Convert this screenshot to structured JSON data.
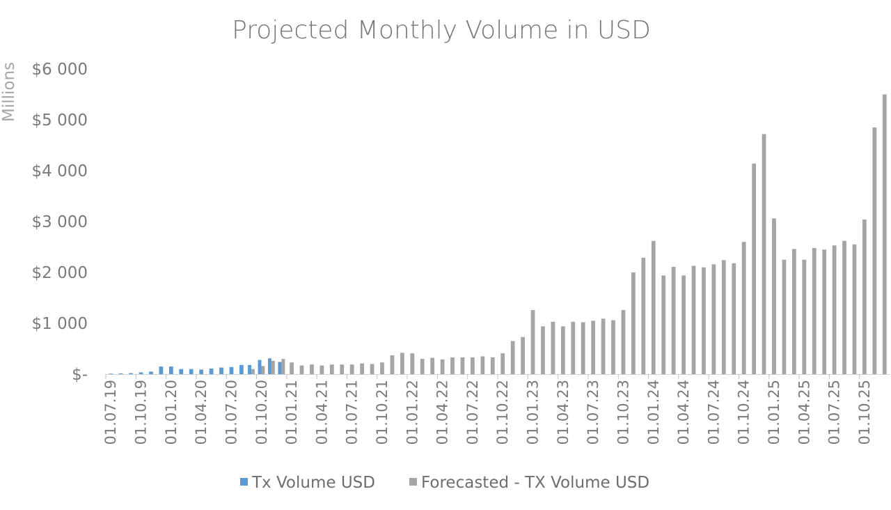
{
  "chart_data": {
    "type": "bar",
    "title": "Projected Monthly Volume in USD",
    "ylabel": "Millions",
    "ylim": [
      0,
      6000
    ],
    "yticks": [
      0,
      1000,
      2000,
      3000,
      4000,
      5000,
      6000
    ],
    "ytick_labels": [
      "$-",
      "$1 000",
      "$2 000",
      "$3 000",
      "$4 000",
      "$5 000",
      "$6 000"
    ],
    "grid": false,
    "legend_position": "bottom",
    "categories": [
      "01.07.19",
      "01.08.19",
      "01.09.19",
      "01.10.19",
      "01.11.19",
      "01.12.19",
      "01.01.20",
      "01.02.20",
      "01.03.20",
      "01.04.20",
      "01.05.20",
      "01.06.20",
      "01.07.20",
      "01.08.20",
      "01.09.20",
      "01.10.20",
      "01.11.20",
      "01.12.20",
      "01.01.21",
      "01.02.21",
      "01.03.21",
      "01.04.21",
      "01.05.21",
      "01.06.21",
      "01.07.21",
      "01.08.21",
      "01.09.21",
      "01.10.21",
      "01.11.21",
      "01.12.21",
      "01.01.22",
      "01.02.22",
      "01.03.22",
      "01.04.22",
      "01.05.22",
      "01.06.22",
      "01.07.22",
      "01.08.22",
      "01.09.22",
      "01.10.22",
      "01.11.22",
      "01.12.22",
      "01.01.23",
      "01.02.23",
      "01.03.23",
      "01.04.23",
      "01.05.23",
      "01.06.23",
      "01.07.23",
      "01.08.23",
      "01.09.23",
      "01.10.23",
      "01.11.23",
      "01.12.23",
      "01.01.24",
      "01.02.24",
      "01.03.24",
      "01.04.24",
      "01.05.24",
      "01.06.24",
      "01.07.24",
      "01.08.24",
      "01.09.24",
      "01.10.24",
      "01.11.24",
      "01.12.24",
      "01.01.25",
      "01.02.25",
      "01.03.25",
      "01.04.25",
      "01.05.25",
      "01.06.25",
      "01.07.25",
      "01.08.25",
      "01.09.25",
      "01.10.25",
      "01.11.25",
      "01.12.25"
    ],
    "xtick_labels": [
      "01.07.19",
      "01.10.19",
      "01.01.20",
      "01.04.20",
      "01.07.20",
      "01.10.20",
      "01.01.21",
      "01.04.21",
      "01.07.21",
      "01.10.21",
      "01.01.22",
      "01.04.22",
      "01.07.22",
      "01.10.22",
      "01.01.23",
      "01.04.23",
      "01.07.23",
      "01.10.23",
      "01.01.24",
      "01.04.24",
      "01.07.24",
      "01.10.24",
      "01.01.25",
      "01.04.25",
      "01.07.25",
      "01.10.25"
    ],
    "series": [
      {
        "name": "Tx Volume USD",
        "color": "#5b9bd5",
        "values": [
          10,
          15,
          20,
          35,
          50,
          150,
          150,
          100,
          100,
          90,
          110,
          130,
          140,
          180,
          180,
          280,
          310,
          240,
          null,
          null,
          null,
          null,
          null,
          null,
          null,
          null,
          null,
          null,
          null,
          null,
          null,
          null,
          null,
          null,
          null,
          null,
          null,
          null,
          null,
          null,
          null,
          null,
          null,
          null,
          null,
          null,
          null,
          null,
          null,
          null,
          null,
          null,
          null,
          null,
          null,
          null,
          null,
          null,
          null,
          null,
          null,
          null,
          null,
          null,
          null,
          null,
          null,
          null,
          null,
          null,
          null,
          null,
          null,
          null,
          null,
          null,
          null,
          null
        ]
      },
      {
        "name": "Forecasted - TX Volume USD",
        "color": "#a5a5a5",
        "values": [
          null,
          null,
          null,
          null,
          null,
          null,
          null,
          null,
          null,
          null,
          null,
          null,
          null,
          null,
          100,
          160,
          260,
          300,
          230,
          170,
          190,
          170,
          190,
          190,
          190,
          210,
          200,
          230,
          370,
          420,
          410,
          300,
          320,
          290,
          330,
          330,
          330,
          350,
          330,
          410,
          650,
          730,
          1260,
          940,
          1030,
          940,
          1030,
          1020,
          1050,
          1090,
          1060,
          1260,
          2000,
          2290,
          2620,
          1940,
          2110,
          1940,
          2130,
          2100,
          2160,
          2240,
          2180,
          2600,
          4140,
          4720,
          3060,
          2250,
          2460,
          2250,
          2480,
          2450,
          2530,
          2620,
          2550,
          3040,
          4850,
          5500
        ]
      }
    ]
  }
}
